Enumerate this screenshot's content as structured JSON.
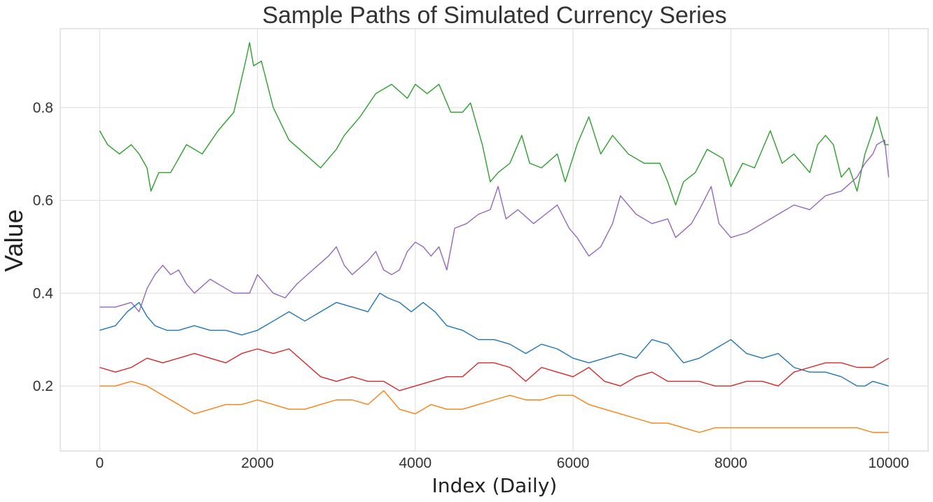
{
  "chart_data": {
    "type": "line",
    "title": "Sample Paths of Simulated Currency Series",
    "xlabel": "Index (Daily)",
    "ylabel": "Value",
    "xlim": [
      -500,
      10500
    ],
    "ylim": [
      0.06,
      0.97
    ],
    "xticks": [
      0,
      2000,
      4000,
      6000,
      8000,
      10000
    ],
    "yticks": [
      0.2,
      0.4,
      0.6,
      0.8
    ],
    "xtick_labels": [
      "0",
      "2000",
      "4000",
      "6000",
      "8000",
      "10000"
    ],
    "ytick_labels": [
      "0.2",
      "0.4",
      "0.6",
      "0.8"
    ],
    "grid": true,
    "legend": "none",
    "series": [
      {
        "color": "#2ca02c",
        "x": [
          0,
          100,
          250,
          400,
          500,
          600,
          650,
          750,
          900,
          1100,
          1300,
          1500,
          1700,
          1850,
          1900,
          1950,
          2050,
          2200,
          2400,
          2600,
          2800,
          3000,
          3100,
          3300,
          3500,
          3700,
          3900,
          4000,
          4150,
          4300,
          4450,
          4600,
          4700,
          4850,
          4950,
          5050,
          5200,
          5350,
          5450,
          5600,
          5800,
          5900,
          6050,
          6200,
          6350,
          6500,
          6700,
          6900,
          7100,
          7200,
          7300,
          7400,
          7550,
          7700,
          7900,
          8000,
          8150,
          8300,
          8500,
          8650,
          8800,
          9000,
          9100,
          9200,
          9300,
          9400,
          9500,
          9600,
          9700,
          9800,
          9850,
          9950,
          10000
        ],
        "y": [
          0.75,
          0.72,
          0.7,
          0.72,
          0.7,
          0.67,
          0.62,
          0.66,
          0.66,
          0.72,
          0.7,
          0.75,
          0.79,
          0.9,
          0.94,
          0.89,
          0.9,
          0.8,
          0.73,
          0.7,
          0.67,
          0.71,
          0.74,
          0.78,
          0.83,
          0.85,
          0.82,
          0.85,
          0.83,
          0.85,
          0.79,
          0.79,
          0.81,
          0.72,
          0.64,
          0.66,
          0.68,
          0.74,
          0.68,
          0.67,
          0.7,
          0.64,
          0.72,
          0.78,
          0.7,
          0.74,
          0.7,
          0.68,
          0.68,
          0.64,
          0.59,
          0.64,
          0.66,
          0.71,
          0.69,
          0.63,
          0.68,
          0.67,
          0.75,
          0.68,
          0.7,
          0.66,
          0.72,
          0.74,
          0.72,
          0.65,
          0.67,
          0.62,
          0.7,
          0.75,
          0.78,
          0.72,
          0.72
        ]
      },
      {
        "color": "#9467bd",
        "x": [
          0,
          200,
          400,
          500,
          600,
          700,
          800,
          900,
          1000,
          1100,
          1200,
          1400,
          1600,
          1700,
          1900,
          2000,
          2100,
          2200,
          2350,
          2500,
          2700,
          2900,
          3000,
          3100,
          3200,
          3400,
          3500,
          3600,
          3700,
          3800,
          3900,
          4000,
          4100,
          4200,
          4300,
          4400,
          4500,
          4650,
          4800,
          4950,
          5050,
          5150,
          5300,
          5500,
          5650,
          5800,
          5950,
          6050,
          6200,
          6350,
          6500,
          6600,
          6800,
          7000,
          7200,
          7300,
          7500,
          7600,
          7750,
          7850,
          8000,
          8200,
          8400,
          8600,
          8800,
          9000,
          9200,
          9400,
          9600,
          9700,
          9800,
          9850,
          9950,
          10000
        ],
        "y": [
          0.37,
          0.37,
          0.38,
          0.36,
          0.41,
          0.44,
          0.46,
          0.44,
          0.45,
          0.42,
          0.4,
          0.43,
          0.41,
          0.4,
          0.4,
          0.44,
          0.42,
          0.4,
          0.39,
          0.42,
          0.45,
          0.48,
          0.5,
          0.46,
          0.44,
          0.47,
          0.49,
          0.45,
          0.44,
          0.45,
          0.49,
          0.51,
          0.5,
          0.48,
          0.5,
          0.45,
          0.54,
          0.55,
          0.57,
          0.58,
          0.63,
          0.56,
          0.58,
          0.55,
          0.57,
          0.59,
          0.54,
          0.52,
          0.48,
          0.5,
          0.55,
          0.61,
          0.57,
          0.55,
          0.56,
          0.52,
          0.55,
          0.58,
          0.63,
          0.55,
          0.52,
          0.53,
          0.55,
          0.57,
          0.59,
          0.58,
          0.61,
          0.62,
          0.65,
          0.68,
          0.7,
          0.72,
          0.73,
          0.65
        ]
      },
      {
        "color": "#1f77b4",
        "x": [
          0,
          200,
          350,
          500,
          600,
          700,
          850,
          1000,
          1200,
          1400,
          1600,
          1800,
          2000,
          2200,
          2400,
          2600,
          2800,
          3000,
          3200,
          3400,
          3550,
          3650,
          3800,
          3950,
          4100,
          4250,
          4400,
          4600,
          4800,
          5000,
          5200,
          5400,
          5600,
          5800,
          6000,
          6200,
          6400,
          6600,
          6800,
          7000,
          7200,
          7400,
          7600,
          7800,
          8000,
          8200,
          8400,
          8600,
          8800,
          9000,
          9200,
          9400,
          9600,
          9700,
          9800,
          10000
        ],
        "y": [
          0.32,
          0.33,
          0.36,
          0.38,
          0.35,
          0.33,
          0.32,
          0.32,
          0.33,
          0.32,
          0.32,
          0.31,
          0.32,
          0.34,
          0.36,
          0.34,
          0.36,
          0.38,
          0.37,
          0.36,
          0.4,
          0.39,
          0.38,
          0.36,
          0.38,
          0.36,
          0.33,
          0.32,
          0.3,
          0.3,
          0.29,
          0.27,
          0.29,
          0.28,
          0.26,
          0.25,
          0.26,
          0.27,
          0.26,
          0.3,
          0.29,
          0.25,
          0.26,
          0.28,
          0.3,
          0.27,
          0.26,
          0.27,
          0.24,
          0.23,
          0.23,
          0.22,
          0.2,
          0.2,
          0.21,
          0.2
        ]
      },
      {
        "color": "#d62728",
        "x": [
          0,
          200,
          400,
          600,
          800,
          1000,
          1200,
          1400,
          1600,
          1800,
          2000,
          2200,
          2400,
          2600,
          2800,
          3000,
          3200,
          3400,
          3600,
          3800,
          4000,
          4200,
          4400,
          4600,
          4800,
          5000,
          5200,
          5400,
          5600,
          5800,
          6000,
          6200,
          6400,
          6600,
          6800,
          7000,
          7200,
          7400,
          7600,
          7800,
          8000,
          8200,
          8400,
          8600,
          8800,
          9000,
          9200,
          9400,
          9600,
          9800,
          10000
        ],
        "y": [
          0.24,
          0.23,
          0.24,
          0.26,
          0.25,
          0.26,
          0.27,
          0.26,
          0.25,
          0.27,
          0.28,
          0.27,
          0.28,
          0.25,
          0.22,
          0.21,
          0.22,
          0.21,
          0.21,
          0.19,
          0.2,
          0.21,
          0.22,
          0.22,
          0.25,
          0.25,
          0.24,
          0.21,
          0.24,
          0.23,
          0.22,
          0.24,
          0.21,
          0.2,
          0.22,
          0.23,
          0.21,
          0.21,
          0.21,
          0.2,
          0.2,
          0.21,
          0.21,
          0.2,
          0.23,
          0.24,
          0.25,
          0.25,
          0.24,
          0.24,
          0.26
        ]
      },
      {
        "color": "#ff7f0e",
        "x": [
          0,
          200,
          400,
          600,
          800,
          1000,
          1200,
          1400,
          1600,
          1800,
          2000,
          2200,
          2400,
          2600,
          2800,
          3000,
          3200,
          3400,
          3600,
          3800,
          4000,
          4200,
          4400,
          4600,
          4800,
          5000,
          5200,
          5400,
          5600,
          5800,
          6000,
          6200,
          6400,
          6600,
          6800,
          7000,
          7200,
          7400,
          7600,
          7800,
          8000,
          8200,
          8400,
          8600,
          8800,
          9000,
          9200,
          9400,
          9600,
          9800,
          10000
        ],
        "y": [
          0.2,
          0.2,
          0.21,
          0.2,
          0.18,
          0.16,
          0.14,
          0.15,
          0.16,
          0.16,
          0.17,
          0.16,
          0.15,
          0.15,
          0.16,
          0.17,
          0.17,
          0.16,
          0.19,
          0.15,
          0.14,
          0.16,
          0.15,
          0.15,
          0.16,
          0.17,
          0.18,
          0.17,
          0.17,
          0.18,
          0.18,
          0.16,
          0.15,
          0.14,
          0.13,
          0.12,
          0.12,
          0.11,
          0.1,
          0.11,
          0.11,
          0.11,
          0.11,
          0.11,
          0.11,
          0.11,
          0.11,
          0.11,
          0.11,
          0.1,
          0.1
        ]
      }
    ]
  }
}
